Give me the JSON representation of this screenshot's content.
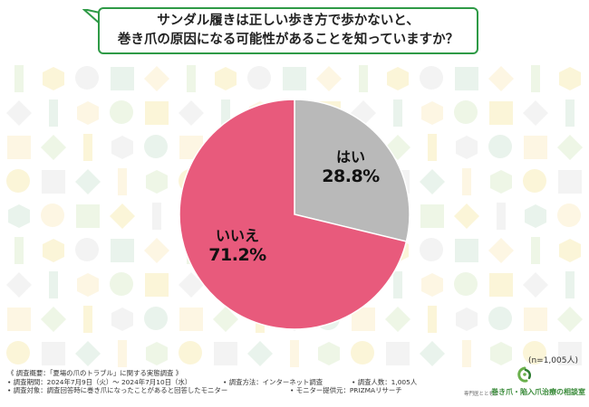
{
  "title": {
    "line1": "サンダル履きは正しい歩き方で歩かないと、",
    "line2": "巻き爪の原因になる可能性があることを知っていますか？"
  },
  "chart_data": {
    "type": "pie",
    "slices": [
      {
        "label": "はい",
        "value": 28.8,
        "display": "28.8%",
        "color": "#b9b9b9"
      },
      {
        "label": "いいえ",
        "value": 71.2,
        "display": "71.2%",
        "color": "#e85a7c"
      }
    ]
  },
  "sample_size": "(n=1,005人)",
  "footer": {
    "overview": "《 調査概要：「夏場の爪のトラブル」に関する実態調査 》",
    "period": "• 調査期間：2024年7月9日（火）～ 2024年7月10日（水）",
    "method": "• 調査方法：インターネット調査",
    "count": "• 調査人数：1,005人",
    "target": "• 調査対象：調査回答時に巻き爪になったことがあると回答したモニター",
    "provider": "• モニター提供元：PRIZMAリサーチ"
  },
  "logo": {
    "sub": "専門医とともに",
    "main": "巻き爪・陥入爪治療の相談室"
  },
  "colors": {
    "accent_green": "#2e9a46",
    "hai": "#b9b9b9",
    "iie": "#e85a7c"
  }
}
